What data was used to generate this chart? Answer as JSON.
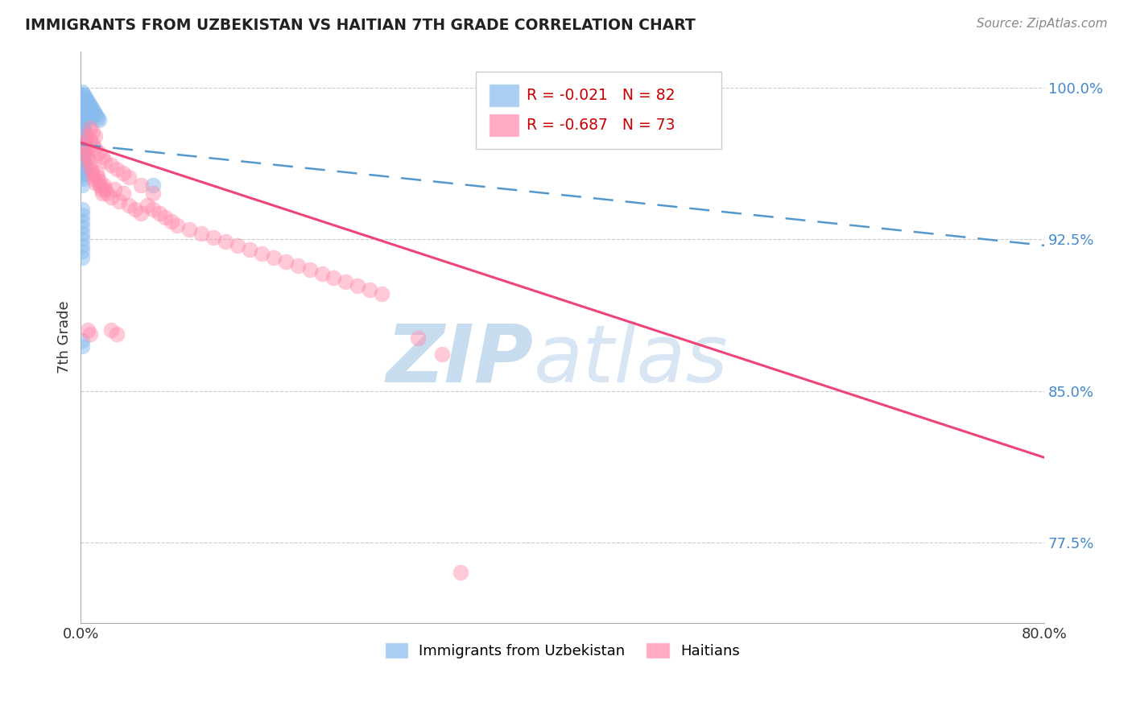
{
  "title": "IMMIGRANTS FROM UZBEKISTAN VS HAITIAN 7TH GRADE CORRELATION CHART",
  "source": "Source: ZipAtlas.com",
  "ylabel": "7th Grade",
  "yticks": [
    0.775,
    0.85,
    0.925,
    1.0
  ],
  "ytick_labels": [
    "77.5%",
    "85.0%",
    "92.5%",
    "100.0%"
  ],
  "xmin": 0.0,
  "xmax": 0.8,
  "ymin": 0.735,
  "ymax": 1.018,
  "blue_color": "#88BBEE",
  "pink_color": "#FF88AA",
  "blue_line_color": "#5599CC",
  "pink_line_color": "#EE4477",
  "blue_line_x0": 0.0,
  "blue_line_y0": 0.972,
  "blue_line_x1": 0.8,
  "blue_line_y1": 0.922,
  "pink_line_x0": 0.0,
  "pink_line_y0": 0.973,
  "pink_line_x1": 0.8,
  "pink_line_y1": 0.817,
  "legend_R_blue": "-0.021",
  "legend_N_blue": "82",
  "legend_R_pink": "-0.687",
  "legend_N_pink": "73",
  "blue_scatter_x": [
    0.001,
    0.001,
    0.001,
    0.001,
    0.001,
    0.001,
    0.001,
    0.001,
    0.001,
    0.001,
    0.001,
    0.001,
    0.001,
    0.001,
    0.001,
    0.001,
    0.001,
    0.001,
    0.001,
    0.001,
    0.002,
    0.002,
    0.002,
    0.002,
    0.002,
    0.002,
    0.002,
    0.002,
    0.002,
    0.002,
    0.003,
    0.003,
    0.003,
    0.003,
    0.003,
    0.003,
    0.004,
    0.004,
    0.004,
    0.004,
    0.005,
    0.005,
    0.005,
    0.005,
    0.006,
    0.006,
    0.006,
    0.007,
    0.007,
    0.008,
    0.008,
    0.009,
    0.009,
    0.01,
    0.01,
    0.011,
    0.012,
    0.013,
    0.014,
    0.015,
    0.001,
    0.001,
    0.001,
    0.002,
    0.002,
    0.003,
    0.001,
    0.001,
    0.001,
    0.001,
    0.001,
    0.001,
    0.001,
    0.001,
    0.001,
    0.06,
    0.001,
    0.002,
    0.002,
    0.003,
    0.001,
    0.001
  ],
  "blue_scatter_y": [
    0.998,
    0.996,
    0.994,
    0.992,
    0.99,
    0.988,
    0.986,
    0.984,
    0.982,
    0.98,
    0.978,
    0.976,
    0.974,
    0.972,
    0.97,
    0.968,
    0.966,
    0.964,
    0.962,
    0.96,
    0.997,
    0.994,
    0.991,
    0.988,
    0.985,
    0.982,
    0.979,
    0.976,
    0.973,
    0.97,
    0.996,
    0.993,
    0.99,
    0.987,
    0.984,
    0.981,
    0.995,
    0.992,
    0.989,
    0.986,
    0.994,
    0.991,
    0.988,
    0.985,
    0.993,
    0.99,
    0.987,
    0.992,
    0.989,
    0.991,
    0.988,
    0.99,
    0.987,
    0.989,
    0.986,
    0.988,
    0.987,
    0.986,
    0.985,
    0.984,
    0.958,
    0.955,
    0.952,
    0.96,
    0.957,
    0.959,
    0.94,
    0.937,
    0.934,
    0.931,
    0.928,
    0.925,
    0.922,
    0.919,
    0.916,
    0.952,
    0.97,
    0.967,
    0.964,
    0.961,
    0.875,
    0.872
  ],
  "pink_scatter_x": [
    0.002,
    0.003,
    0.004,
    0.005,
    0.006,
    0.007,
    0.008,
    0.009,
    0.01,
    0.011,
    0.012,
    0.013,
    0.014,
    0.015,
    0.016,
    0.017,
    0.018,
    0.019,
    0.02,
    0.022,
    0.025,
    0.028,
    0.032,
    0.035,
    0.04,
    0.045,
    0.05,
    0.055,
    0.06,
    0.065,
    0.07,
    0.075,
    0.08,
    0.09,
    0.1,
    0.11,
    0.12,
    0.13,
    0.14,
    0.15,
    0.16,
    0.17,
    0.18,
    0.19,
    0.2,
    0.21,
    0.22,
    0.23,
    0.24,
    0.25,
    0.005,
    0.008,
    0.01,
    0.012,
    0.015,
    0.018,
    0.02,
    0.025,
    0.03,
    0.035,
    0.04,
    0.05,
    0.06,
    0.008,
    0.01,
    0.012,
    0.28,
    0.3,
    0.006,
    0.008,
    0.315,
    0.025,
    0.03
  ],
  "pink_scatter_y": [
    0.973,
    0.971,
    0.969,
    0.967,
    0.965,
    0.963,
    0.961,
    0.959,
    0.957,
    0.955,
    0.953,
    0.958,
    0.956,
    0.954,
    0.952,
    0.95,
    0.948,
    0.952,
    0.95,
    0.948,
    0.946,
    0.95,
    0.944,
    0.948,
    0.942,
    0.94,
    0.938,
    0.942,
    0.94,
    0.938,
    0.936,
    0.934,
    0.932,
    0.93,
    0.928,
    0.926,
    0.924,
    0.922,
    0.92,
    0.918,
    0.916,
    0.914,
    0.912,
    0.91,
    0.908,
    0.906,
    0.904,
    0.902,
    0.9,
    0.898,
    0.976,
    0.974,
    0.972,
    0.97,
    0.968,
    0.966,
    0.964,
    0.962,
    0.96,
    0.958,
    0.956,
    0.952,
    0.948,
    0.98,
    0.978,
    0.976,
    0.876,
    0.868,
    0.88,
    0.878,
    0.76,
    0.88,
    0.878
  ]
}
